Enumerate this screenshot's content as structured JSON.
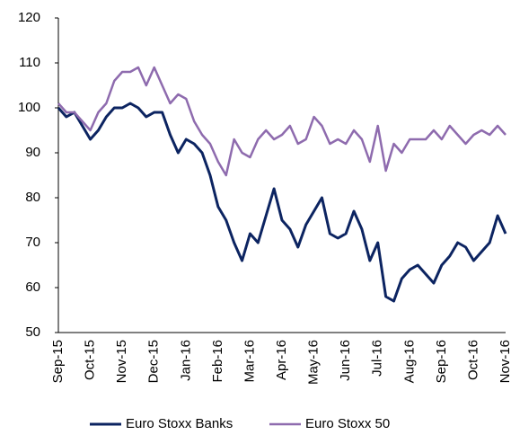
{
  "chart_data": {
    "type": "line",
    "categories": [
      "Sep-15",
      null,
      null,
      null,
      "Oct-15",
      null,
      null,
      null,
      "Nov-15",
      null,
      null,
      null,
      "Dec-15",
      null,
      null,
      null,
      "Jan-16",
      null,
      null,
      null,
      "Feb-16",
      null,
      null,
      null,
      "Mar-16",
      null,
      null,
      null,
      "Apr-16",
      null,
      null,
      null,
      "May-16",
      null,
      null,
      null,
      "Jun-16",
      null,
      null,
      null,
      "Jul-16",
      null,
      null,
      null,
      "Aug-16",
      null,
      null,
      null,
      "Sep-16",
      null,
      null,
      null,
      "Oct-16",
      null,
      null,
      null,
      "Nov-16"
    ],
    "series": [
      {
        "name": "Euro Stoxx Banks",
        "color": "#0c2461",
        "values": [
          100,
          98,
          99,
          96,
          93,
          95,
          98,
          100,
          100,
          101,
          100,
          98,
          99,
          99,
          94,
          90,
          93,
          92,
          90,
          85,
          78,
          75,
          70,
          66,
          72,
          70,
          76,
          82,
          75,
          73,
          69,
          74,
          77,
          80,
          72,
          71,
          72,
          77,
          73,
          66,
          70,
          58,
          57,
          62,
          64,
          65,
          63,
          61,
          65,
          67,
          70,
          69,
          66,
          68,
          70,
          76,
          72
        ]
      },
      {
        "name": "Euro Stoxx 50",
        "color": "#8e6bae",
        "values": [
          101,
          99,
          99,
          97,
          95,
          99,
          101,
          106,
          108,
          108,
          109,
          105,
          109,
          105,
          101,
          103,
          102,
          97,
          94,
          92,
          88,
          85,
          93,
          90,
          89,
          93,
          95,
          93,
          94,
          96,
          92,
          93,
          98,
          96,
          92,
          93,
          92,
          95,
          93,
          88,
          96,
          86,
          92,
          90,
          93,
          93,
          93,
          95,
          93,
          96,
          94,
          92,
          94,
          95,
          94,
          96,
          94
        ]
      }
    ],
    "ylim": [
      50,
      120
    ],
    "yticks": [
      50,
      60,
      70,
      80,
      90,
      100,
      110,
      120
    ]
  }
}
